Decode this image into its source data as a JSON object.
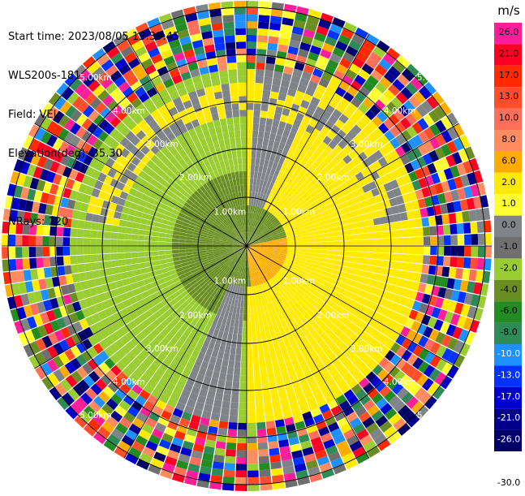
{
  "header": {
    "start_time": "Start time: 2023/08/05 13:39:45",
    "instrument": "WLS200s-181",
    "field": "Field: VEL",
    "elevation": "Elevation(deg): 35.30",
    "nrays": "NRays: 120"
  },
  "colorbar": {
    "unit": "m/s",
    "segments": [
      {
        "label": "26.0",
        "color": "#ff1e9a"
      },
      {
        "label": "21.0",
        "color": "#ff0024"
      },
      {
        "label": "17.0",
        "color": "#ff2a00"
      },
      {
        "label": "13.0",
        "color": "#ff4f2a"
      },
      {
        "label": "10.0",
        "color": "#ff6f5a"
      },
      {
        "label": "8.0",
        "color": "#ff8c5f"
      },
      {
        "label": "6.0",
        "color": "#ffab00"
      },
      {
        "label": "2.0",
        "color": "#ffea00"
      },
      {
        "label": "1.0",
        "color": "#ffff33"
      },
      {
        "label": "0.0",
        "color": "#7f8489"
      },
      {
        "label": "-1.0",
        "color": "#6f6f6f"
      },
      {
        "label": "-2.0",
        "color": "#9acd32"
      },
      {
        "label": "-4.0",
        "color": "#6b8e23"
      },
      {
        "label": "-6.0",
        "color": "#228b22"
      },
      {
        "label": "-8.0",
        "color": "#2e8b57"
      },
      {
        "label": "-10.0",
        "color": "#1e90ff"
      },
      {
        "label": "-13.0",
        "color": "#0033ff"
      },
      {
        "label": "-17.0",
        "color": "#0000cd"
      },
      {
        "label": "-21.0",
        "color": "#00008b"
      },
      {
        "label": "-26.0",
        "color": "#000066"
      }
    ],
    "bottom_label": "-30.0"
  },
  "chart_data": {
    "type": "ppi",
    "field": "VEL",
    "units": "m/s",
    "elevation_deg": 35.3,
    "n_rays": 120,
    "range_rings_labels": [
      "1.00km",
      "2.00km",
      "3.00km",
      "4.00km",
      "5.00km"
    ],
    "legend_placement": "right",
    "velocity_pattern": {
      "inner_green_core": -4.0,
      "southeast_orange_core": 6.0,
      "positive_lobe": 2.0,
      "negative_lobe": -2.0,
      "gray_band": 0.0
    }
  }
}
